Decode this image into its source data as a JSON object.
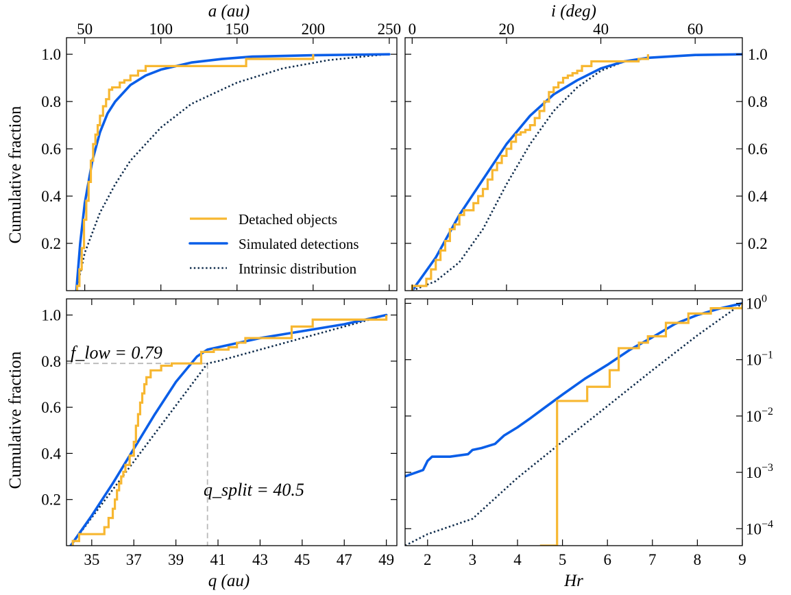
{
  "colors": {
    "detached": "#f7b731",
    "simulated": "#0a5ee8",
    "intrinsic": "#0d2a4a",
    "guide": "#b9b9b9"
  },
  "labels": {
    "top_left_x": "a (au)",
    "top_right_x": "i (deg)",
    "bottom_left_x": "q (au)",
    "bottom_right_x": "Hr",
    "y_left_top": "Cumulative fraction",
    "y_left_bottom": "Cumulative fraction"
  },
  "legend": {
    "detached": "Detached objects",
    "simulated": "Simulated detections",
    "intrinsic": "Intrinsic distribution",
    "location": "lower right of top-left panel"
  },
  "annotations": {
    "f_low": "f_low = 0.79",
    "q_split": "q_split = 40.5"
  },
  "chart_data": [
    {
      "panel": "top-left",
      "type": "line",
      "xlabel": "a (au)",
      "ylabel": "Cumulative fraction",
      "xscale": "linear",
      "xlim": [
        38,
        255
      ],
      "ylim": [
        0,
        1.07
      ],
      "xticks": [
        50,
        100,
        150,
        200,
        250
      ],
      "yticks": [
        0.2,
        0.4,
        0.6,
        0.8,
        1.0
      ],
      "legend_placement": "lower-right",
      "series": [
        {
          "name": "Detached objects",
          "kind": "step",
          "x": [
            45,
            46.5,
            48,
            49.5,
            51,
            52.5,
            54,
            55.5,
            57,
            58.5,
            60,
            62,
            64,
            66,
            68,
            70,
            73,
            76,
            80,
            85,
            90,
            98,
            108,
            120,
            140,
            156,
            170,
            185,
            200
          ],
          "y": [
            0.02,
            0.09,
            0.18,
            0.3,
            0.38,
            0.46,
            0.55,
            0.62,
            0.66,
            0.7,
            0.74,
            0.78,
            0.81,
            0.85,
            0.86,
            0.86,
            0.88,
            0.89,
            0.91,
            0.93,
            0.95,
            0.95,
            0.95,
            0.95,
            0.95,
            0.98,
            0.98,
            0.98,
            1.0
          ]
        },
        {
          "name": "Simulated detections",
          "kind": "line",
          "x": [
            44.5,
            47,
            50,
            55,
            60,
            65,
            70,
            80,
            90,
            100,
            120,
            140,
            160,
            200,
            250
          ],
          "y": [
            0.0,
            0.2,
            0.37,
            0.55,
            0.67,
            0.75,
            0.8,
            0.87,
            0.91,
            0.935,
            0.965,
            0.98,
            0.99,
            0.996,
            1.0
          ]
        },
        {
          "name": "Intrinsic distribution",
          "kind": "line",
          "x": [
            44.5,
            50,
            60,
            70,
            80,
            100,
            120,
            150,
            180,
            210,
            240,
            250
          ],
          "y": [
            0.0,
            0.16,
            0.33,
            0.45,
            0.55,
            0.69,
            0.79,
            0.88,
            0.94,
            0.975,
            0.995,
            1.0
          ]
        }
      ]
    },
    {
      "panel": "top-right",
      "type": "line",
      "xlabel": "i (deg)",
      "ylabel": "",
      "xscale": "linear",
      "xlim": [
        -1.5,
        70
      ],
      "ylim": [
        0,
        1.07
      ],
      "xticks": [
        0,
        20,
        40,
        60
      ],
      "yticks": [
        0.2,
        0.4,
        0.6,
        0.8,
        1.0
      ],
      "series": [
        {
          "name": "Detached objects",
          "kind": "step",
          "x": [
            0,
            3,
            4,
            5,
            6,
            7,
            8,
            9,
            10,
            11,
            13,
            14,
            15,
            16,
            17,
            18,
            19,
            20,
            21,
            22,
            23,
            24,
            25,
            26,
            27,
            28,
            29,
            30,
            31,
            32,
            33,
            34,
            35,
            36,
            38,
            41,
            44,
            48,
            50
          ],
          "y": [
            0.02,
            0.05,
            0.09,
            0.13,
            0.17,
            0.21,
            0.26,
            0.28,
            0.32,
            0.34,
            0.37,
            0.4,
            0.43,
            0.47,
            0.51,
            0.54,
            0.57,
            0.6,
            0.63,
            0.66,
            0.67,
            0.68,
            0.7,
            0.73,
            0.76,
            0.8,
            0.84,
            0.86,
            0.88,
            0.9,
            0.91,
            0.92,
            0.93,
            0.95,
            0.97,
            0.97,
            0.97,
            0.98,
            1.0
          ]
        },
        {
          "name": "Simulated detections",
          "kind": "line",
          "x": [
            0,
            5,
            10,
            15,
            20,
            25,
            30,
            35,
            40,
            45,
            50,
            60,
            70
          ],
          "y": [
            0.0,
            0.14,
            0.32,
            0.47,
            0.62,
            0.74,
            0.83,
            0.89,
            0.94,
            0.97,
            0.985,
            0.997,
            1.0
          ]
        },
        {
          "name": "Intrinsic distribution",
          "kind": "line",
          "x": [
            0,
            5,
            10,
            15,
            20,
            25,
            30,
            35,
            40,
            45,
            50,
            60,
            70
          ],
          "y": [
            0.0,
            0.04,
            0.12,
            0.26,
            0.45,
            0.62,
            0.76,
            0.86,
            0.93,
            0.97,
            0.985,
            0.997,
            1.0
          ]
        }
      ]
    },
    {
      "panel": "bottom-left",
      "type": "line",
      "xlabel": "q (au)",
      "ylabel": "Cumulative fraction",
      "xscale": "linear",
      "xlim": [
        33.8,
        49.5
      ],
      "ylim": [
        0,
        1.07
      ],
      "xticks": [
        35,
        37,
        39,
        41,
        43,
        45,
        47,
        49
      ],
      "yticks": [
        0.2,
        0.4,
        0.6,
        0.8,
        1.0
      ],
      "guides": {
        "f_low": 0.79,
        "q_split": 40.5
      },
      "series": [
        {
          "name": "Detached objects",
          "kind": "step",
          "x": [
            34.1,
            34.4,
            34.9,
            35.6,
            35.8,
            36.0,
            36.1,
            36.2,
            36.3,
            36.4,
            36.5,
            36.6,
            36.8,
            37.0,
            37.1,
            37.2,
            37.3,
            37.4,
            37.5,
            37.6,
            37.8,
            38.0,
            38.3,
            38.8,
            39.5,
            40.2,
            40.8,
            41.5,
            41.9,
            42.3,
            43.0,
            44.5,
            45.5,
            47.0,
            48.5,
            49.0
          ],
          "y": [
            0.02,
            0.05,
            0.05,
            0.08,
            0.12,
            0.16,
            0.2,
            0.24,
            0.27,
            0.3,
            0.32,
            0.35,
            0.39,
            0.45,
            0.52,
            0.57,
            0.62,
            0.66,
            0.7,
            0.73,
            0.76,
            0.76,
            0.78,
            0.79,
            0.79,
            0.84,
            0.85,
            0.86,
            0.88,
            0.9,
            0.9,
            0.95,
            0.98,
            0.98,
            0.98,
            1.0
          ]
        },
        {
          "name": "Simulated detections",
          "kind": "line",
          "x": [
            34.0,
            35.0,
            36.0,
            37.0,
            38.0,
            39.0,
            40.0,
            40.5,
            41.0,
            43.0,
            45.0,
            47.0,
            49.0
          ],
          "y": [
            0.0,
            0.13,
            0.27,
            0.42,
            0.57,
            0.71,
            0.82,
            0.85,
            0.86,
            0.9,
            0.93,
            0.96,
            1.0
          ]
        },
        {
          "name": "Intrinsic distribution",
          "kind": "line",
          "x": [
            34.0,
            40.5,
            41.0,
            43.0,
            45.0,
            47.0,
            49.0
          ],
          "y": [
            0.0,
            0.79,
            0.8,
            0.85,
            0.9,
            0.95,
            1.0
          ]
        }
      ]
    },
    {
      "panel": "bottom-right",
      "type": "line",
      "xlabel": "Hr",
      "ylabel": "",
      "xscale": "linear",
      "yscale": "log",
      "xlim": [
        1.5,
        9.0
      ],
      "ylim": [
        5e-05,
        1.2
      ],
      "xticks": [
        2,
        3,
        4,
        5,
        6,
        7,
        8,
        9
      ],
      "yticks": [
        "10^0",
        "10^-1",
        "10^-2",
        "10^-3",
        "10^-4"
      ],
      "series": [
        {
          "name": "Detached objects",
          "kind": "step",
          "x": [
            4.5,
            4.88,
            5.55,
            6.05,
            6.25,
            6.7,
            6.9,
            7.3,
            7.8,
            8.3,
            9.0
          ],
          "y": [
            5e-05,
            0.0185,
            0.033,
            0.065,
            0.16,
            0.2,
            0.26,
            0.45,
            0.66,
            0.82,
            1.0
          ]
        },
        {
          "name": "Simulated detections",
          "kind": "line",
          "x": [
            1.5,
            1.9,
            2.0,
            2.1,
            2.5,
            2.9,
            3.0,
            3.2,
            3.5,
            3.7,
            4.0,
            4.3,
            4.6,
            5.0,
            5.5,
            6.0,
            6.5,
            7.0,
            7.5,
            8.0,
            8.5,
            9.0
          ],
          "y": [
            0.00085,
            0.0011,
            0.0016,
            0.0019,
            0.0019,
            0.0021,
            0.0025,
            0.0027,
            0.0032,
            0.0045,
            0.0063,
            0.0093,
            0.014,
            0.024,
            0.046,
            0.081,
            0.15,
            0.25,
            0.43,
            0.62,
            0.81,
            1.0
          ]
        },
        {
          "name": "Intrinsic distribution",
          "kind": "line",
          "x": [
            1.5,
            2.0,
            3.0,
            4.0,
            5.0,
            6.0,
            7.0,
            8.0,
            9.0
          ],
          "y": [
            5e-05,
            8e-05,
            0.00015,
            0.0008,
            0.0035,
            0.015,
            0.065,
            0.27,
            1.0
          ]
        }
      ]
    }
  ]
}
